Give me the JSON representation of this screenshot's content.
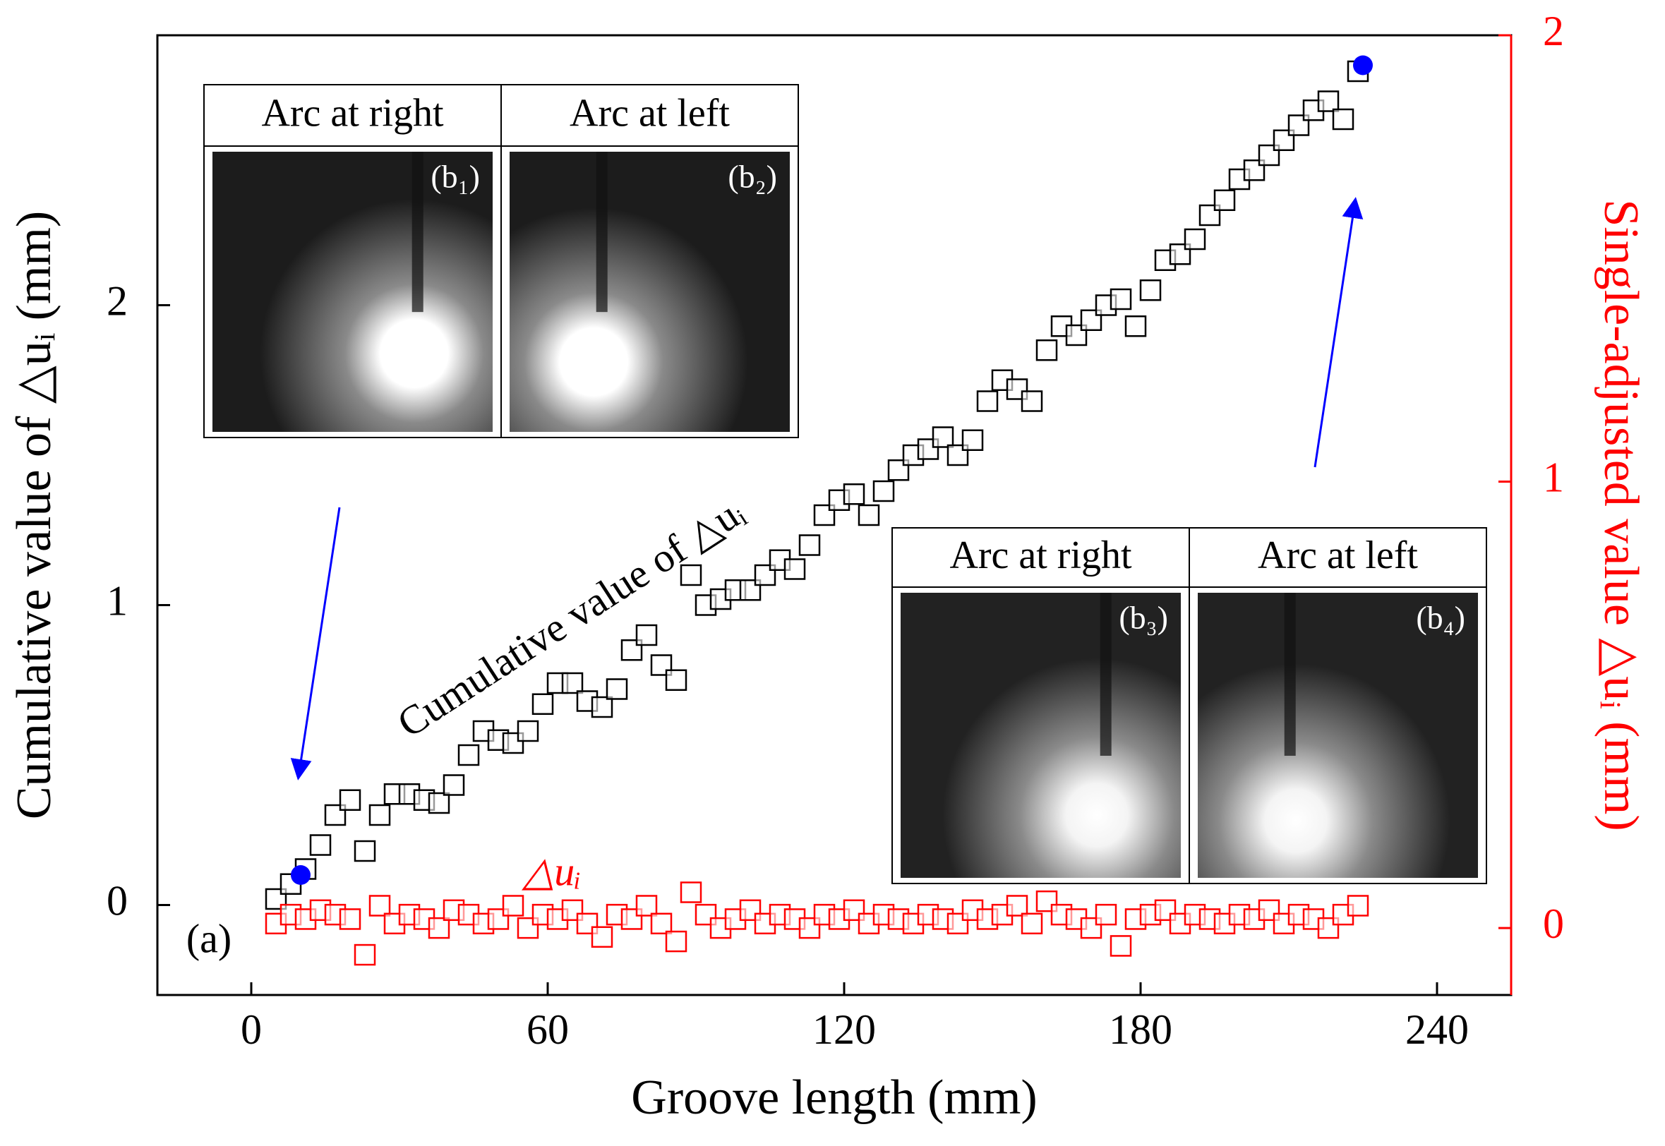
{
  "chart_data": {
    "type": "scatter",
    "x_label": "Groove length  (mm)",
    "y_label": "Cumulative value of △uᵢ (mm)",
    "y2_label": "Single-adjusted value △uᵢ (mm)",
    "xlim": [
      -19,
      255
    ],
    "xticks": [
      0,
      60,
      120,
      180,
      240
    ],
    "ylim": [
      -0.3,
      2.9
    ],
    "yticks": [
      0,
      1,
      2
    ],
    "y2lim": [
      -0.15,
      2
    ],
    "y2ticks": [
      0,
      1,
      2
    ],
    "x": [
      5,
      8,
      11,
      14,
      17,
      20,
      23,
      26,
      29,
      32,
      35,
      38,
      41,
      44,
      47,
      50,
      53,
      56,
      59,
      62,
      65,
      68,
      71,
      74,
      77,
      80,
      83,
      86,
      89,
      92,
      95,
      98,
      101,
      104,
      107,
      110,
      113,
      116,
      119,
      122,
      125,
      128,
      131,
      134,
      137,
      140,
      143,
      146,
      149,
      152,
      155,
      158,
      161,
      164,
      167,
      170,
      173,
      176,
      179,
      182,
      185,
      188,
      191,
      194,
      197,
      200,
      203,
      206,
      209,
      212,
      215,
      218,
      221,
      224
    ],
    "series": [
      {
        "name": "Cumulative value of  △uᵢ",
        "color": "#000000",
        "values": [
          0.02,
          0.07,
          0.12,
          0.2,
          0.3,
          0.35,
          0.18,
          0.3,
          0.37,
          0.37,
          0.35,
          0.34,
          0.4,
          0.5,
          0.58,
          0.55,
          0.54,
          0.58,
          0.67,
          0.74,
          0.74,
          0.68,
          0.66,
          0.72,
          0.85,
          0.9,
          0.8,
          0.75,
          1.1,
          1.0,
          1.02,
          1.05,
          1.05,
          1.1,
          1.15,
          1.12,
          1.2,
          1.3,
          1.35,
          1.37,
          1.3,
          1.38,
          1.45,
          1.5,
          1.52,
          1.56,
          1.5,
          1.55,
          1.68,
          1.75,
          1.72,
          1.68,
          1.85,
          1.93,
          1.9,
          1.95,
          2.0,
          2.02,
          1.93,
          2.05,
          2.15,
          2.17,
          2.22,
          2.3,
          2.35,
          2.42,
          2.45,
          2.5,
          2.55,
          2.6,
          2.65,
          2.68,
          2.62,
          2.78
        ]
      },
      {
        "name": "△uᵢ",
        "color": "#ff0000",
        "axis": "y2",
        "values": [
          0.01,
          0.03,
          0.02,
          0.04,
          0.03,
          0.02,
          -0.06,
          0.05,
          0.01,
          0.03,
          0.02,
          0.0,
          0.04,
          0.03,
          0.01,
          0.02,
          0.05,
          0.0,
          0.03,
          0.02,
          0.04,
          0.01,
          -0.02,
          0.03,
          0.02,
          0.05,
          0.01,
          -0.03,
          0.08,
          0.03,
          0.0,
          0.02,
          0.04,
          0.01,
          0.03,
          0.02,
          0.0,
          0.03,
          0.02,
          0.04,
          0.01,
          0.03,
          0.02,
          0.01,
          0.03,
          0.02,
          0.01,
          0.04,
          0.02,
          0.03,
          0.05,
          0.01,
          0.06,
          0.03,
          0.02,
          0.0,
          0.03,
          -0.04,
          0.02,
          0.03,
          0.04,
          0.01,
          0.03,
          0.02,
          0.01,
          0.03,
          0.02,
          0.04,
          0.01,
          0.03,
          0.02,
          0.0,
          0.03,
          0.05
        ]
      }
    ],
    "highlight_points": {
      "color": "#0000ff",
      "x": [
        10,
        225
      ],
      "values": [
        0.1,
        2.8
      ]
    },
    "panel_label": "(a)",
    "insets": [
      {
        "headers": [
          "Arc at right",
          "Arc at left"
        ],
        "labels": [
          "(b₁)",
          "(b₂)"
        ]
      },
      {
        "headers": [
          "Arc at right",
          "Arc at left"
        ],
        "labels": [
          "(b₃)",
          "(b₄)"
        ]
      }
    ]
  }
}
